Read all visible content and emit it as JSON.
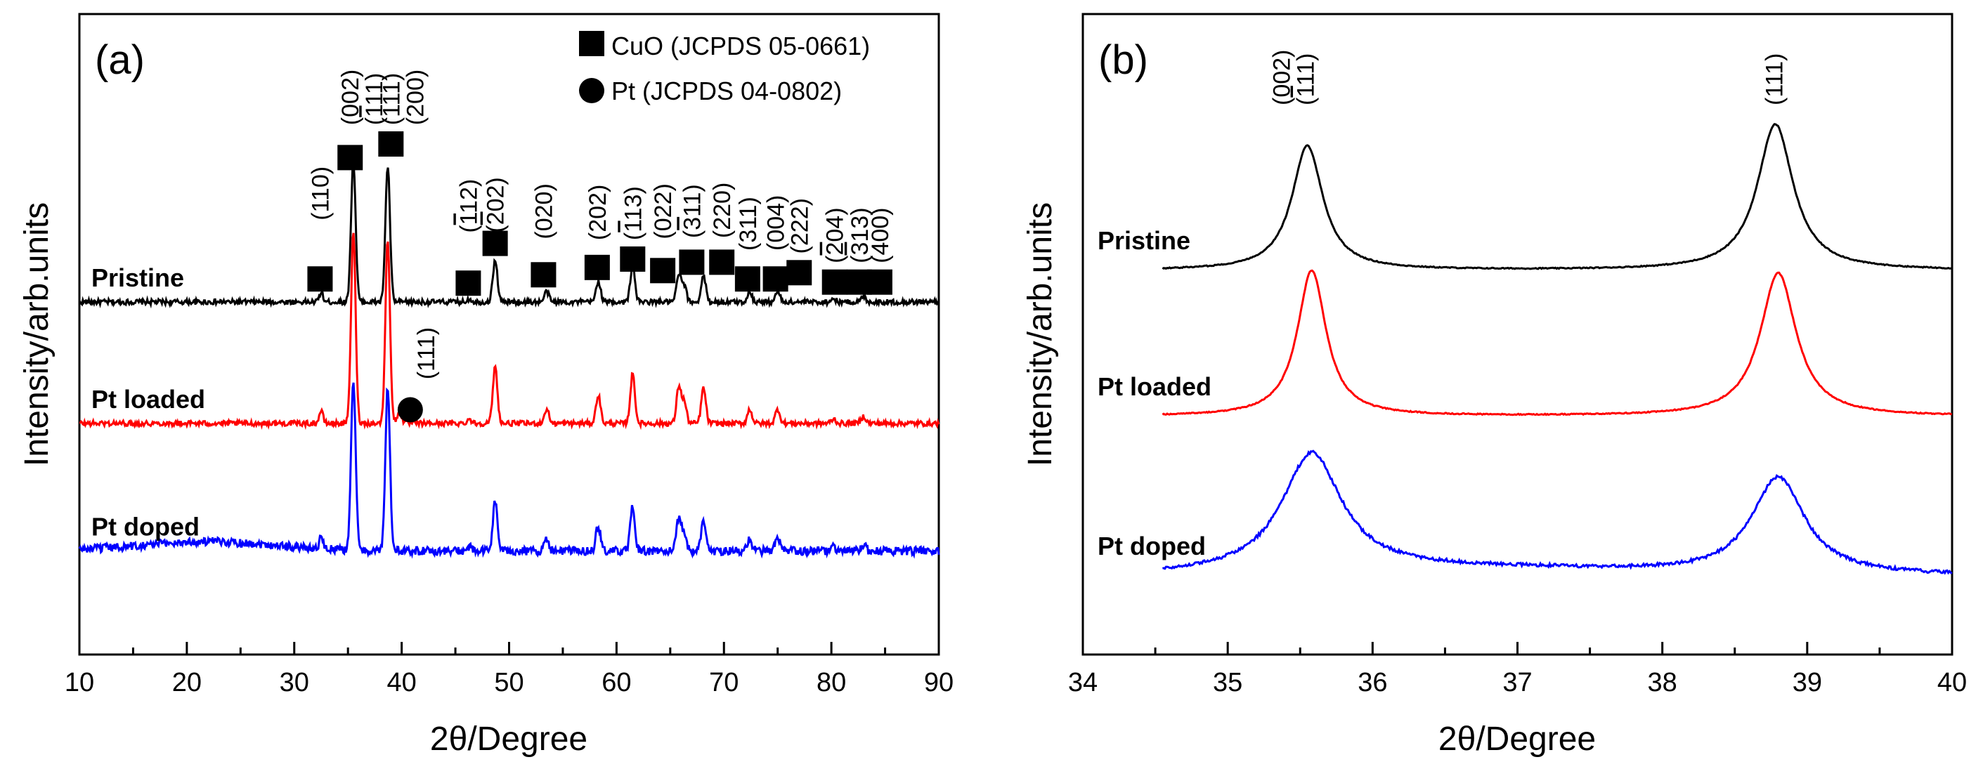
{
  "colors": {
    "pristine": "#000000",
    "pt_loaded": "#ff0000",
    "pt_doped": "#0000ff",
    "axis": "#000000"
  },
  "chart_data": [
    {
      "type": "line",
      "panel_label": "(a)",
      "xlabel": "2θ/Degree",
      "ylabel": "Intensity/arb.units",
      "xlim": [
        10,
        90
      ],
      "xticks": [
        "10",
        "20",
        "30",
        "40",
        "50",
        "60",
        "70",
        "80",
        "90"
      ],
      "y_ticks_shown": false,
      "legend": {
        "position": "top-right",
        "entries": [
          {
            "marker": "square",
            "label": "CuO (JCPDS 05-0661)"
          },
          {
            "marker": "circle",
            "label": "Pt (JCPDS 04-0802)"
          }
        ]
      },
      "series": [
        {
          "name": "Pristine",
          "color_key": "pristine",
          "baseline": 0.0,
          "noise": 0.5,
          "intensity_scale": 1.0,
          "broad_hump": {
            "center": 22,
            "width": 8,
            "height": 0.0
          }
        },
        {
          "name": "Pt loaded",
          "color_key": "pt_loaded",
          "baseline": -11.6,
          "noise": 0.5,
          "intensity_scale": 1.35,
          "broad_hump": {
            "center": 22,
            "width": 8,
            "height": 0.0
          }
        },
        {
          "name": "Pt doped",
          "color_key": "pt_doped",
          "baseline": -23.8,
          "noise": 0.8,
          "intensity_scale": 1.2,
          "broad_hump": {
            "center": 22,
            "width": 9,
            "height": 0.9
          }
        }
      ],
      "peaks": [
        {
          "x": 32.5,
          "h": 0.9,
          "w": 0.25
        },
        {
          "x": 35.5,
          "h": 13.5,
          "w": 0.3
        },
        {
          "x": 38.7,
          "h": 13.0,
          "w": 0.3
        },
        {
          "x": 46.3,
          "h": 0.3,
          "w": 0.3
        },
        {
          "x": 48.7,
          "h": 4.0,
          "w": 0.3
        },
        {
          "x": 53.5,
          "h": 1.0,
          "w": 0.3
        },
        {
          "x": 58.3,
          "h": 2.0,
          "w": 0.3
        },
        {
          "x": 61.5,
          "h": 3.5,
          "w": 0.3
        },
        {
          "x": 65.8,
          "h": 2.6,
          "w": 0.3
        },
        {
          "x": 66.3,
          "h": 1.5,
          "w": 0.3
        },
        {
          "x": 68.1,
          "h": 2.5,
          "w": 0.3
        },
        {
          "x": 72.4,
          "h": 1.0,
          "w": 0.3
        },
        {
          "x": 75.0,
          "h": 1.0,
          "w": 0.3
        },
        {
          "x": 80.2,
          "h": 0.3,
          "w": 0.3
        },
        {
          "x": 83.0,
          "h": 0.5,
          "w": 0.3
        }
      ],
      "extra_peaks": [
        {
          "series": "Pt loaded",
          "x": 39.8,
          "h": 1.0,
          "w": 0.3
        }
      ],
      "annotations": [
        {
          "marker": "square",
          "x": 32.4,
          "y": 2.2,
          "hkl": "(110)",
          "lbl_y": 7.8,
          "segments": [
            [
              "",
              "(110)"
            ]
          ]
        },
        {
          "marker": "square",
          "x": 35.2,
          "y": 13.8,
          "hkl": "(002)",
          "lbl_y": 16.9,
          "segments": [
            [
              "",
              "(002)"
            ]
          ]
        },
        {
          "marker": "square",
          "x": 35.2,
          "y": 13.8,
          "hkl": "(-111)",
          "lbl_y": 16.9,
          "segments": [
            [
              "",
              "("
            ],
            [
              "o",
              "1"
            ],
            [
              "",
              "11)"
            ]
          ]
        },
        {
          "marker": "square",
          "x": 39.0,
          "y": 15.1,
          "hkl": "(111)",
          "lbl_y": 16.9,
          "segments": [
            [
              "",
              "(111)"
            ]
          ]
        },
        {
          "marker": "square",
          "x": 39.0,
          "y": 15.1,
          "hkl": "(200)",
          "lbl_y": 16.9,
          "segments": [
            [
              "",
              "(200)"
            ]
          ]
        },
        {
          "marker": "square",
          "x": 46.2,
          "y": 1.8,
          "hkl": "(-112)",
          "lbl_y": 6.6,
          "segments": [
            [
              "",
              "("
            ],
            [
              "o",
              "1"
            ],
            [
              "",
              "12)"
            ]
          ]
        },
        {
          "marker": "square",
          "x": 48.7,
          "y": 5.6,
          "hkl": "(-202)",
          "lbl_y": 6.6,
          "segments": [
            [
              "",
              "("
            ],
            [
              "o",
              "2"
            ],
            [
              "",
              "02)"
            ]
          ]
        },
        {
          "marker": "square",
          "x": 53.2,
          "y": 2.6,
          "hkl": "(020)",
          "lbl_y": 6.0,
          "segments": [
            [
              "",
              "(020)"
            ]
          ]
        },
        {
          "marker": "square",
          "x": 58.2,
          "y": 3.3,
          "hkl": "(202)",
          "lbl_y": 5.9,
          "segments": [
            [
              "",
              "(202)"
            ]
          ]
        },
        {
          "marker": "square",
          "x": 61.5,
          "y": 4.1,
          "hkl": "(-113)",
          "lbl_y": 5.9,
          "segments": [
            [
              "",
              "("
            ],
            [
              "o",
              "1"
            ],
            [
              "",
              "13)"
            ]
          ]
        },
        {
          "marker": "square",
          "x": 64.3,
          "y": 3.0,
          "hkl": "(022)",
          "lbl_y": 6.0,
          "segments": [
            [
              "",
              "(022)"
            ]
          ]
        },
        {
          "marker": "square",
          "x": 67.0,
          "y": 3.8,
          "hkl": "(-311)",
          "lbl_y": 6.1,
          "segments": [
            [
              "",
              "("
            ],
            [
              "o",
              "3"
            ],
            [
              "",
              "11)"
            ]
          ]
        },
        {
          "marker": "square",
          "x": 69.8,
          "y": 3.8,
          "hkl": "(220)",
          "lbl_y": 6.1,
          "segments": [
            [
              "",
              "(220)"
            ]
          ]
        },
        {
          "marker": "square",
          "x": 72.2,
          "y": 2.2,
          "hkl": "(311)",
          "lbl_y": 4.9,
          "segments": [
            [
              "",
              "(311)"
            ]
          ]
        },
        {
          "marker": "square",
          "x": 74.8,
          "y": 2.2,
          "hkl": "(004)",
          "lbl_y": 4.9,
          "segments": [
            [
              "",
              "(004)"
            ]
          ]
        },
        {
          "marker": "square",
          "x": 77.0,
          "y": 2.8,
          "hkl": "(222)",
          "lbl_y": 4.6,
          "segments": [
            [
              "",
              "(222)"
            ]
          ]
        },
        {
          "marker": "square",
          "x": 80.3,
          "y": 1.9,
          "hkl": "(-204)",
          "lbl_y": 3.7,
          "segments": [
            [
              "",
              "("
            ],
            [
              "o",
              "2"
            ],
            [
              "",
              "04)"
            ]
          ]
        },
        {
          "marker": "square",
          "x": 82.6,
          "y": 1.9,
          "hkl": "(-313)",
          "lbl_y": 3.7,
          "segments": [
            [
              "",
              "("
            ],
            [
              "o",
              "3"
            ],
            [
              "",
              "13)"
            ]
          ]
        },
        {
          "marker": "square",
          "x": 84.5,
          "y": 1.9,
          "hkl": "(400)",
          "lbl_y": 3.7,
          "segments": [
            [
              "",
              "(400)"
            ]
          ]
        },
        {
          "marker": "circle",
          "x": 40.8,
          "y": -10.3,
          "hkl": "(111)",
          "lbl_y": -7.4,
          "segments": [
            [
              "",
              "(111)"
            ]
          ]
        }
      ]
    },
    {
      "type": "line",
      "panel_label": "(b)",
      "xlabel": "2θ/Degree",
      "ylabel": "Intensity/arb.units",
      "xlim": [
        34,
        40
      ],
      "xticks": [
        "34",
        "35",
        "36",
        "37",
        "38",
        "39",
        "40"
      ],
      "y_ticks_shown": false,
      "series": [
        {
          "name": "Pristine",
          "color_key": "pristine",
          "baseline": 0.0,
          "noise": 0.04,
          "peaks": [
            {
              "x": 35.55,
              "h": 4.6,
              "w": 0.13
            },
            {
              "x": 38.78,
              "h": 5.4,
              "w": 0.15
            }
          ],
          "tilt": 0.0
        },
        {
          "name": "Pt loaded",
          "color_key": "pt_loaded",
          "baseline": -5.4,
          "noise": 0.04,
          "peaks": [
            {
              "x": 35.58,
              "h": 5.4,
              "w": 0.12
            },
            {
              "x": 38.8,
              "h": 5.3,
              "w": 0.15
            }
          ],
          "tilt": 0.0
        },
        {
          "name": "Pt doped",
          "color_key": "pt_doped",
          "baseline": -11.3,
          "noise": 0.12,
          "peaks": [
            {
              "x": 35.58,
              "h": 4.4,
              "w": 0.25
            },
            {
              "x": 38.8,
              "h": 3.6,
              "w": 0.22
            }
          ],
          "tilt": 0.25
        }
      ],
      "annotations": [
        {
          "x": 35.4,
          "hkl": "(002)",
          "segments": [
            [
              "",
              "(002)"
            ]
          ]
        },
        {
          "x": 35.4,
          "hkl": "(-111)",
          "segments": [
            [
              "",
              "("
            ],
            [
              "o",
              "1"
            ],
            [
              "",
              "11)"
            ]
          ]
        },
        {
          "x": 38.8,
          "hkl": "(111)",
          "segments": [
            [
              "",
              "(111)"
            ]
          ]
        }
      ]
    }
  ]
}
